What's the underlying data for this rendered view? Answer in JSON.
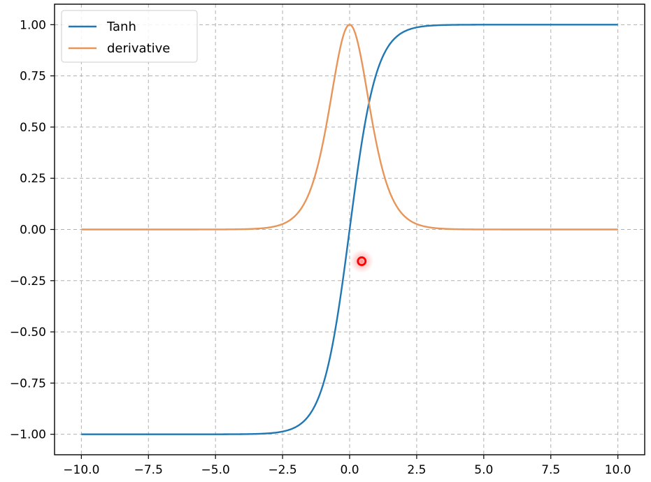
{
  "chart_data": {
    "type": "line",
    "title": "",
    "xlabel": "",
    "ylabel": "",
    "xlim": [
      -11,
      11
    ],
    "ylim": [
      -1.1,
      1.1
    ],
    "xticks": [
      -10.0,
      -7.5,
      -5.0,
      -2.5,
      0.0,
      2.5,
      5.0,
      7.5,
      10.0
    ],
    "xtick_labels": [
      "−10.0",
      "−7.5",
      "−5.0",
      "−2.5",
      "0.0",
      "2.5",
      "5.0",
      "7.5",
      "10.0"
    ],
    "yticks": [
      1.0,
      0.75,
      0.5,
      0.25,
      0.0,
      -0.25,
      -0.5,
      -0.75,
      -1.0
    ],
    "ytick_labels": [
      "1.00",
      "0.75",
      "0.50",
      "0.25",
      "0.00",
      "−0.25",
      "−0.50",
      "−0.75",
      "−1.00"
    ],
    "grid": true,
    "legend_position": "top-left",
    "series": [
      {
        "name": "Tanh",
        "color": "#1f77b4",
        "function": "tanh",
        "x": [
          -10.0,
          -5.0,
          -3.0,
          -2.5,
          -2.0,
          -1.5,
          -1.0,
          -0.5,
          0.0,
          0.5,
          1.0,
          1.5,
          2.0,
          2.5,
          3.0,
          5.0,
          10.0
        ],
        "y": [
          -1.0,
          -0.9999,
          -0.995,
          -0.9866,
          -0.964,
          -0.9051,
          -0.7616,
          -0.4621,
          0.0,
          0.4621,
          0.7616,
          0.9051,
          0.964,
          0.9866,
          0.995,
          0.9999,
          1.0
        ]
      },
      {
        "name": "derivative",
        "color": "#e8955a",
        "function": "1 - tanh^2",
        "x": [
          -10.0,
          -5.0,
          -3.0,
          -2.5,
          -2.0,
          -1.5,
          -1.0,
          -0.5,
          0.0,
          0.5,
          1.0,
          1.5,
          2.0,
          2.5,
          3.0,
          5.0,
          10.0
        ],
        "y": [
          0.0,
          0.0002,
          0.0099,
          0.0266,
          0.0707,
          0.1807,
          0.42,
          0.7864,
          1.0,
          0.7864,
          0.42,
          0.1807,
          0.0707,
          0.0266,
          0.0099,
          0.0002,
          0.0
        ]
      }
    ],
    "cursor_marker": {
      "x": 0.45,
      "y": -0.155,
      "color": "#ff0000"
    }
  }
}
